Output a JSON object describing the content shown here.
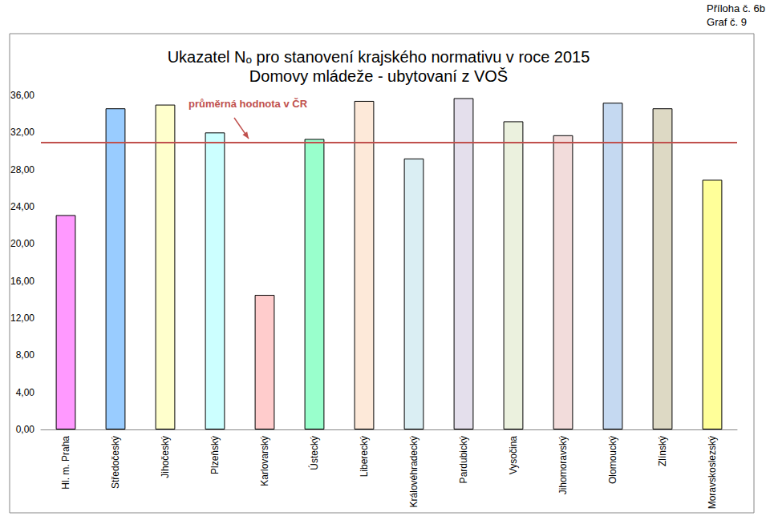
{
  "header": [
    "Příloha č. 6b",
    "Graf č. 9"
  ],
  "chart_data": {
    "type": "bar",
    "title": "Ukazatel Nₒ pro stanovení krajského normativu v roce 2015",
    "subtitle": "Domovy mládeže - ubytovaní z VOŠ",
    "categories": [
      "Hl. m. Praha",
      "Středočeský",
      "Jihočeský",
      "Plzeňský",
      "Karlovarský",
      "Ústecký",
      "Liberecký",
      "Královéhradecký",
      "Pardubický",
      "Vysočina",
      "Jihomoravský",
      "Olomoucký",
      "Zlínský",
      "Moravskoslezský"
    ],
    "values": [
      23.1,
      34.6,
      35.0,
      32.0,
      14.5,
      31.3,
      35.4,
      29.2,
      35.7,
      33.2,
      31.7,
      35.2,
      34.6,
      26.9
    ],
    "colors": [
      "#ff99ff",
      "#99ccff",
      "#ffffcc",
      "#ccffff",
      "#ffcccc",
      "#99ffcc",
      "#fde9d9",
      "#daeef3",
      "#e4dfec",
      "#ebf1de",
      "#f2dcdb",
      "#c5d9f1",
      "#ddd9c4",
      "#ffff99"
    ],
    "average": {
      "label": "průměrná hodnota v ČR",
      "value": 30.9,
      "color": "#c0504d"
    },
    "ylim": [
      0,
      36
    ],
    "yticks": [
      {
        "value": 0,
        "label": "0,00"
      },
      {
        "value": 4,
        "label": "4,00"
      },
      {
        "value": 8,
        "label": "8,00"
      },
      {
        "value": 12,
        "label": "12,00"
      },
      {
        "value": 16,
        "label": "16,00"
      },
      {
        "value": 20,
        "label": "20,00"
      },
      {
        "value": 24,
        "label": "24,00"
      },
      {
        "value": 28,
        "label": "28,00"
      },
      {
        "value": 32,
        "label": "32,00"
      },
      {
        "value": 36,
        "label": "36,00"
      }
    ],
    "grid": false,
    "data_labels": false
  }
}
